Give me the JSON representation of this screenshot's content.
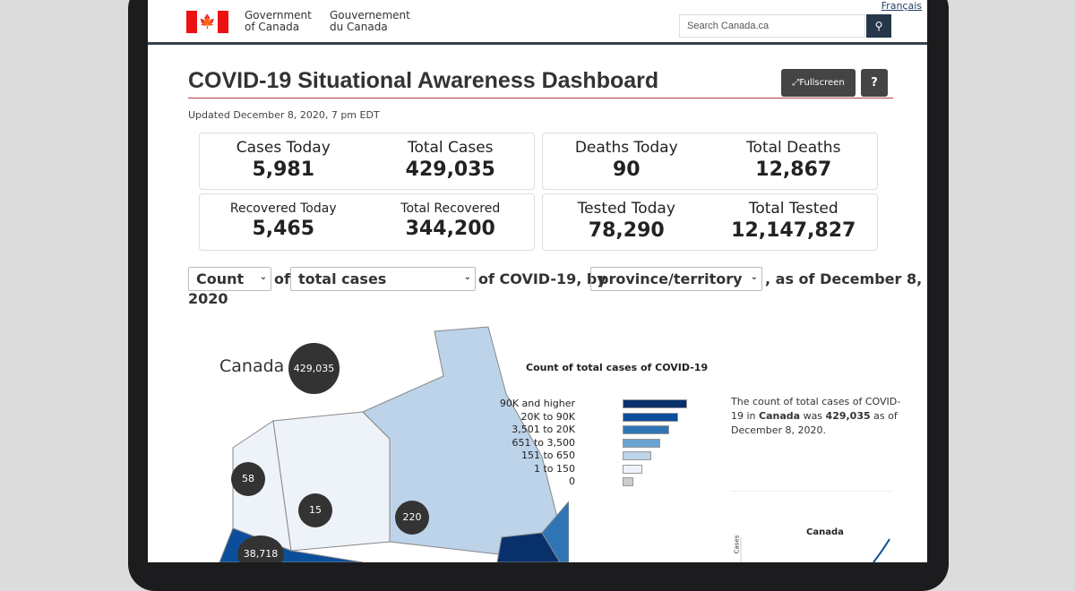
{
  "header": {
    "lang_link": "Français",
    "gov_en": [
      "Government",
      "of Canada"
    ],
    "gov_fr": [
      "Gouvernement",
      "du Canada"
    ],
    "search_placeholder": "Search Canada.ca"
  },
  "page": {
    "title": "COVID-19 Situational Awareness Dashboard",
    "fullscreen": "Fullscreen",
    "help": "?",
    "updated": "Updated December 8, 2020, 7 pm EDT"
  },
  "stats": [
    {
      "label": "Cases Today",
      "value": "5,981"
    },
    {
      "label": "Total Cases",
      "value": "429,035"
    },
    {
      "label": "Deaths Today",
      "value": "90"
    },
    {
      "label": "Total Deaths",
      "value": "12,867"
    },
    {
      "label": "Recovered Today",
      "value": "5,465"
    },
    {
      "label": "Total Recovered",
      "value": "344,200"
    },
    {
      "label": "Tested Today",
      "value": "78,290"
    },
    {
      "label": "Total Tested",
      "value": "12,147,827"
    }
  ],
  "filters": {
    "measure": "Count",
    "of": "of",
    "metric": "total cases",
    "of_covid": "of COVID-19, by",
    "grouping": "province/territory",
    "as_of": ", as of December 8,",
    "year": "2020"
  },
  "map": {
    "country_label": "Canada",
    "bubbles": [
      "429,035",
      "58",
      "15",
      "220",
      "38,718"
    ],
    "legend_title": "Count of total cases of COVID-19",
    "legend": [
      {
        "label": "90K and higher",
        "color": "#08306b"
      },
      {
        "label": "20K to 90K",
        "color": "#0b4f9c"
      },
      {
        "label": "3,501 to 20K",
        "color": "#2f75b5"
      },
      {
        "label": "651 to 3,500",
        "color": "#6aa2d2"
      },
      {
        "label": "151 to 650",
        "color": "#bcd3ea"
      },
      {
        "label": "1 to 150",
        "color": "#eef3f9"
      },
      {
        "label": "0",
        "color": "#cccccc"
      }
    ],
    "desc_pre": "The count of total cases of COVID-19 in ",
    "desc_bold1": "Canada",
    "desc_mid": " was ",
    "desc_bold2": "429,035",
    "desc_post": " as of December 8, 2020.",
    "mini_title": "Canada",
    "mini_ylabel": "Cases"
  }
}
